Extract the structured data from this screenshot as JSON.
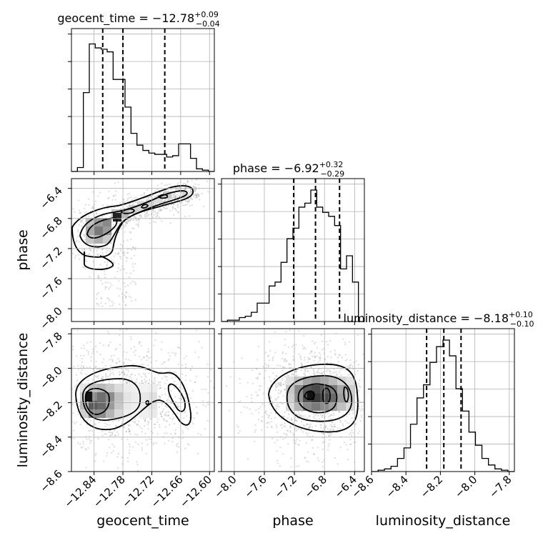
{
  "chart_data": {
    "type": "corner",
    "parameters": [
      "geocent_time",
      "phase",
      "luminosity_distance"
    ],
    "axis_labels": {
      "geocent_time": "geocent_time",
      "phase": "phase",
      "luminosity_distance": "luminosity_distance"
    },
    "titles": [
      {
        "param": "geocent_time",
        "text": "geocent_time = −12.78",
        "plus": "+0.09",
        "minus": "−0.04"
      },
      {
        "param": "phase",
        "text": "phase = −6.92",
        "plus": "+0.32",
        "minus": "−0.29"
      },
      {
        "param": "luminosity_distance",
        "text": "luminosity_distance = −8.18",
        "plus": "+0.10",
        "minus": "−0.10"
      }
    ],
    "ranges": {
      "geocent_time": [
        -12.887,
        -12.59
      ],
      "phase": [
        -8.17,
        -6.27
      ],
      "luminosity_distance": [
        -8.6,
        -7.77
      ]
    },
    "ticks": {
      "geocent_time": [
        -12.84,
        -12.78,
        -12.72,
        -12.66,
        -12.6
      ],
      "phase": [
        -8.0,
        -7.6,
        -7.2,
        -6.8,
        -6.4
      ],
      "luminosity_distance": [
        -8.6,
        -8.4,
        -8.2,
        -8.0,
        -7.8
      ]
    },
    "tick_labels": {
      "geocent_time": [
        "−12.84",
        "−12.78",
        "−12.72",
        "−12.66",
        "−12.60"
      ],
      "phase": [
        "−8.0",
        "−7.6",
        "−7.2",
        "−6.8",
        "−6.4"
      ],
      "luminosity_distance": [
        "−8.6",
        "−8.4",
        "−8.2",
        "−8.0",
        "−7.8"
      ]
    },
    "quantiles": {
      "geocent_time": [
        -12.822,
        -12.78,
        -12.693
      ],
      "phase": [
        -7.21,
        -6.92,
        -6.6
      ],
      "luminosity_distance": [
        -8.28,
        -8.18,
        -8.08
      ]
    },
    "histograms": {
      "geocent_time": [
        0.0,
        0.03,
        0.6,
        0.97,
        0.94,
        0.93,
        0.91,
        0.7,
        0.7,
        0.49,
        0.29,
        0.2,
        0.16,
        0.14,
        0.13,
        0.13,
        0.11,
        0.12,
        0.21,
        0.21,
        0.1,
        0.02,
        0.01,
        0.0
      ],
      "phase": [
        0.0,
        0.01,
        0.01,
        0.03,
        0.04,
        0.07,
        0.14,
        0.14,
        0.27,
        0.3,
        0.45,
        0.63,
        0.71,
        0.87,
        0.9,
        1.0,
        0.87,
        0.83,
        0.8,
        0.73,
        0.4,
        0.5,
        0.3,
        0.0
      ],
      "luminosity_distance": [
        0.0,
        0.01,
        0.02,
        0.04,
        0.1,
        0.18,
        0.36,
        0.56,
        0.66,
        0.83,
        0.95,
        1.0,
        0.88,
        0.63,
        0.46,
        0.3,
        0.2,
        0.1,
        0.05,
        0.02,
        0.01,
        0.0
      ]
    },
    "grid": true,
    "y_tick_labels_on_1d_histograms": false
  }
}
